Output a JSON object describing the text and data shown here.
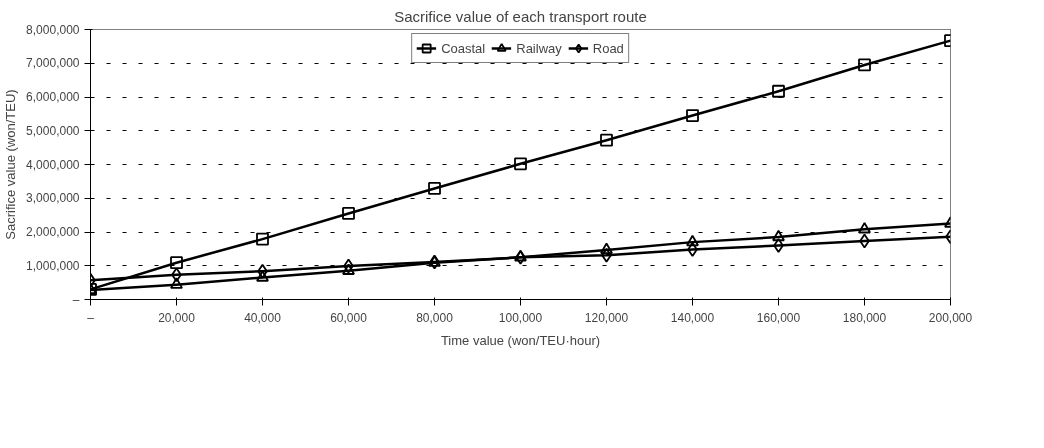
{
  "chart_data": {
    "type": "line",
    "title": "Sacrifice value of each transport route",
    "xlabel": "Time value (won/TEU·hour)",
    "ylabel": "Sacrifice value (won/TEU)",
    "x": [
      0,
      20000,
      40000,
      60000,
      80000,
      100000,
      120000,
      140000,
      160000,
      180000,
      200000
    ],
    "series": [
      {
        "name": "Coastal",
        "color": "#000000",
        "marker": "square",
        "values": [
          300000,
          1090000,
          1790000,
          2550000,
          3290000,
          4020000,
          4720000,
          5450000,
          6170000,
          6950000,
          7670000
        ]
      },
      {
        "name": "Railway",
        "color": "#000000",
        "marker": "triangle",
        "values": [
          280000,
          440000,
          650000,
          850000,
          1090000,
          1250000,
          1470000,
          1700000,
          1850000,
          2080000,
          2250000
        ]
      },
      {
        "name": "Road",
        "color": "#000000",
        "marker": "diamond",
        "values": [
          570000,
          730000,
          840000,
          990000,
          1110000,
          1250000,
          1310000,
          1480000,
          1600000,
          1730000,
          1860000
        ]
      }
    ],
    "xlim": [
      0,
      200000
    ],
    "ylim": [
      0,
      8000000
    ],
    "xticks": [
      {
        "value": 0,
        "label": "–"
      },
      {
        "value": 20000,
        "label": "20,000"
      },
      {
        "value": 40000,
        "label": "40,000"
      },
      {
        "value": 60000,
        "label": "60,000"
      },
      {
        "value": 80000,
        "label": "80,000"
      },
      {
        "value": 100000,
        "label": "100,000"
      },
      {
        "value": 120000,
        "label": "120,000"
      },
      {
        "value": 140000,
        "label": "140,000"
      },
      {
        "value": 160000,
        "label": "160,000"
      },
      {
        "value": 180000,
        "label": "180,000"
      },
      {
        "value": 200000,
        "label": "200,000"
      }
    ],
    "yticks": [
      {
        "value": 0,
        "label": "–"
      },
      {
        "value": 1000000,
        "label": "1,000,000"
      },
      {
        "value": 2000000,
        "label": "2,000,000"
      },
      {
        "value": 3000000,
        "label": "3,000,000"
      },
      {
        "value": 4000000,
        "label": "4,000,000"
      },
      {
        "value": 5000000,
        "label": "5,000,000"
      },
      {
        "value": 6000000,
        "label": "6,000,000"
      },
      {
        "value": 7000000,
        "label": "7,000,000"
      },
      {
        "value": 8000000,
        "label": "8,000,000"
      }
    ],
    "grid": "y",
    "legend": "top",
    "line_style": "solid"
  }
}
